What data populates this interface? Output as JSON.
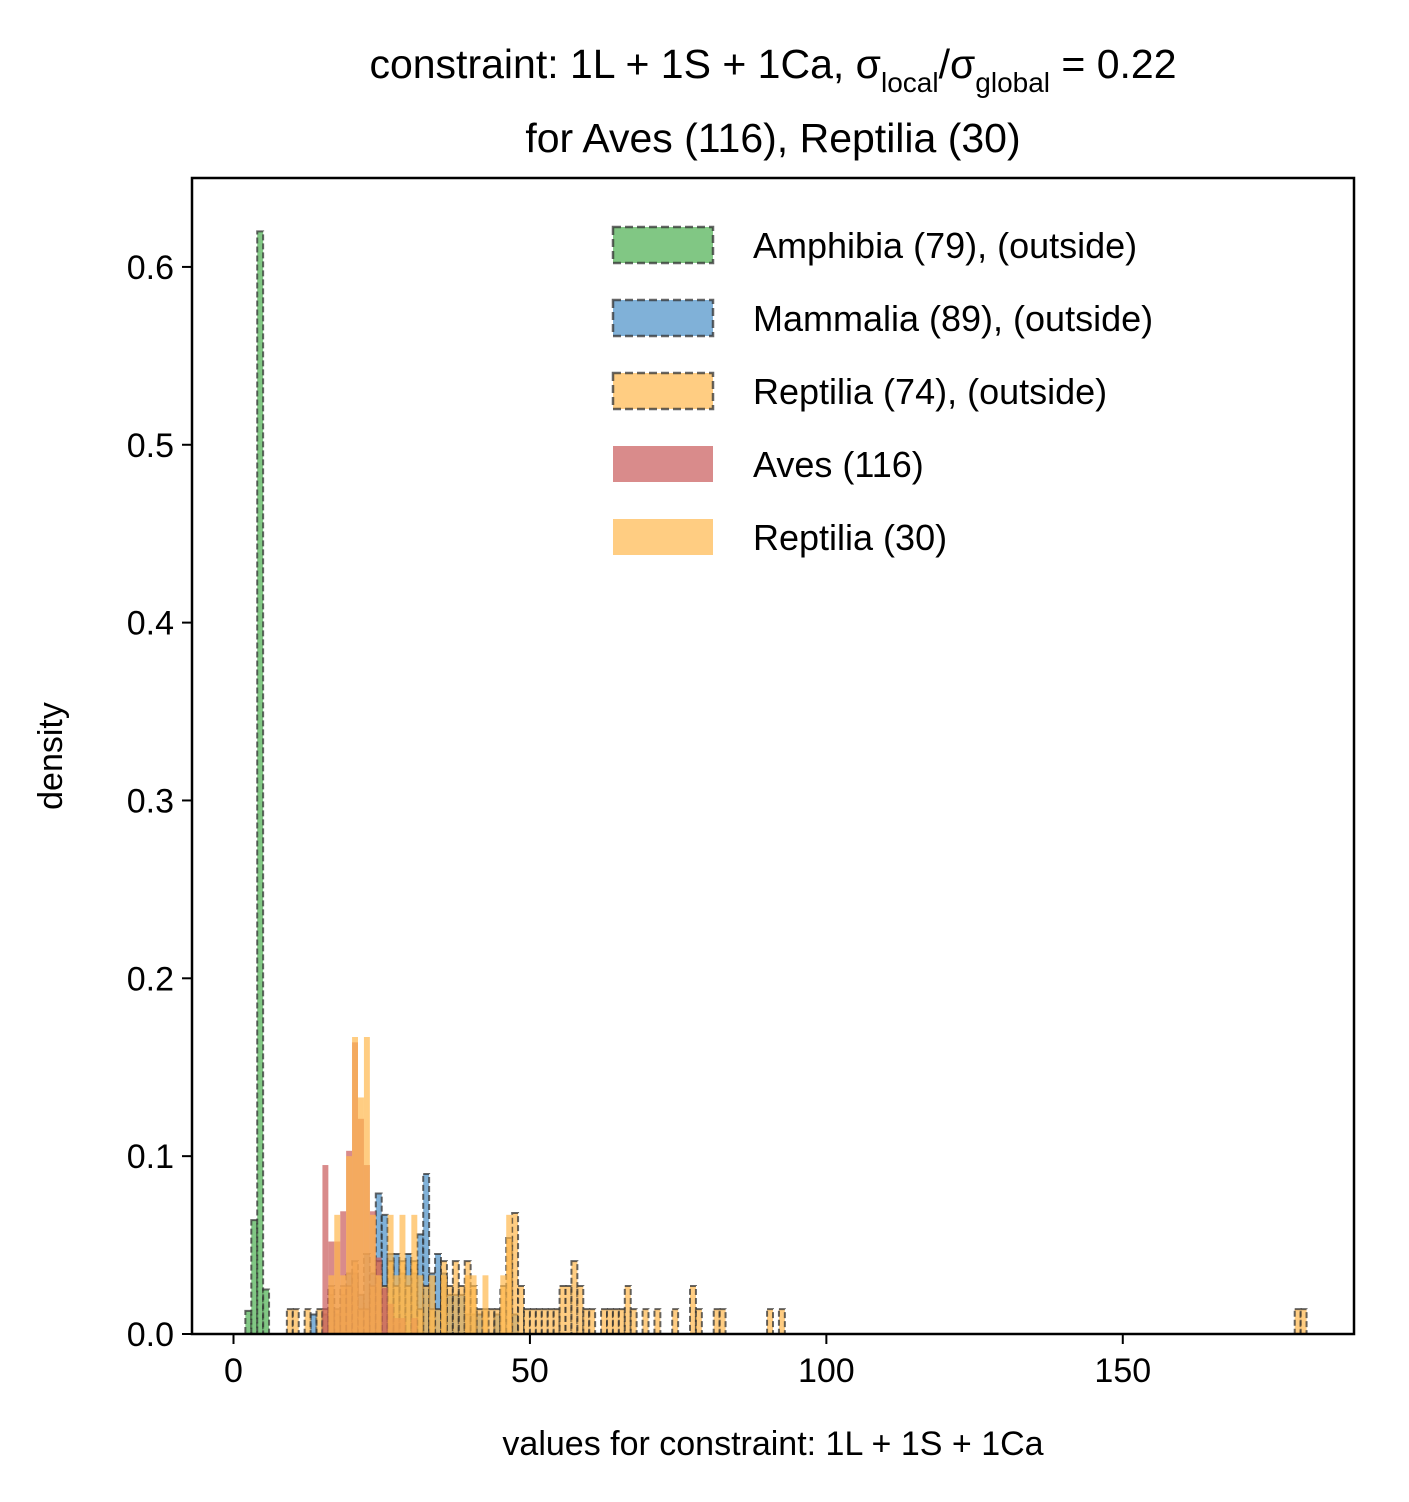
{
  "chart_data": {
    "type": "bar",
    "title": {
      "prefix": "constraint: 1L + 1S + 1Ca, σ",
      "sub1": "local",
      "mid": "/σ",
      "sub2": "global",
      "suffix": " =  0.22",
      "line2": "for Aves (116), Reptilia (30)"
    },
    "xlabel": "values for constraint: 1L + 1S + 1Ca",
    "ylabel": "density",
    "xlim": [
      -7,
      189
    ],
    "ylim": [
      0,
      0.65
    ],
    "xticks": [
      0,
      50,
      100,
      150
    ],
    "yticks": [
      "0.0",
      "0.1",
      "0.2",
      "0.3",
      "0.4",
      "0.5",
      "0.6"
    ],
    "legend_position": "top-right",
    "bin_width": 1,
    "series": [
      {
        "name": "Amphibia (79), (outside)",
        "color": "#4caf50",
        "style": "dashed",
        "bins": [
          [
            2,
            0.013
          ],
          [
            3,
            0.064
          ],
          [
            4,
            0.62
          ],
          [
            5,
            0.025
          ]
        ]
      },
      {
        "name": "Mammalia (89), (outside)",
        "color": "#4a90c8",
        "style": "dashed",
        "bins": [
          [
            13,
            0.011
          ],
          [
            15,
            0.011
          ],
          [
            16,
            0.022
          ],
          [
            17,
            0.011
          ],
          [
            18,
            0.022
          ],
          [
            19,
            0.034
          ],
          [
            20,
            0.034
          ],
          [
            21,
            0.022
          ],
          [
            22,
            0.045
          ],
          [
            23,
            0.034
          ],
          [
            24,
            0.079
          ],
          [
            25,
            0.067
          ],
          [
            26,
            0.045
          ],
          [
            27,
            0.045
          ],
          [
            28,
            0.034
          ],
          [
            29,
            0.045
          ],
          [
            30,
            0.034
          ],
          [
            31,
            0.056
          ],
          [
            32,
            0.09
          ],
          [
            33,
            0.034
          ],
          [
            34,
            0.045
          ],
          [
            35,
            0.034
          ],
          [
            36,
            0.022
          ],
          [
            37,
            0.022
          ],
          [
            38,
            0.022
          ],
          [
            39,
            0.011
          ],
          [
            40,
            0.011
          ],
          [
            41,
            0.011
          ],
          [
            44,
            0.011
          ],
          [
            47,
            0.011
          ]
        ]
      },
      {
        "name": "Reptilia (74), (outside)",
        "color": "#ffb84d",
        "style": "dashed",
        "bins": [
          [
            9,
            0.014
          ],
          [
            10,
            0.014
          ],
          [
            12,
            0.014
          ],
          [
            14,
            0.014
          ],
          [
            15,
            0.014
          ],
          [
            16,
            0.027
          ],
          [
            17,
            0.014
          ],
          [
            18,
            0.027
          ],
          [
            19,
            0.027
          ],
          [
            20,
            0.041
          ],
          [
            21,
            0.014
          ],
          [
            22,
            0.014
          ],
          [
            23,
            0.027
          ],
          [
            24,
            0.041
          ],
          [
            25,
            0.027
          ],
          [
            26,
            0.041
          ],
          [
            27,
            0.027
          ],
          [
            28,
            0.041
          ],
          [
            29,
            0.027
          ],
          [
            30,
            0.041
          ],
          [
            31,
            0.014
          ],
          [
            32,
            0.027
          ],
          [
            33,
            0.014
          ],
          [
            34,
            0.014
          ],
          [
            35,
            0.041
          ],
          [
            36,
            0.027
          ],
          [
            37,
            0.041
          ],
          [
            38,
            0.027
          ],
          [
            39,
            0.041
          ],
          [
            40,
            0.027
          ],
          [
            41,
            0.014
          ],
          [
            42,
            0.014
          ],
          [
            43,
            0.014
          ],
          [
            44,
            0.014
          ],
          [
            45,
            0.027
          ],
          [
            46,
            0.054
          ],
          [
            47,
            0.068
          ],
          [
            48,
            0.027
          ],
          [
            49,
            0.014
          ],
          [
            50,
            0.014
          ],
          [
            51,
            0.014
          ],
          [
            52,
            0.014
          ],
          [
            53,
            0.014
          ],
          [
            54,
            0.014
          ],
          [
            55,
            0.027
          ],
          [
            56,
            0.027
          ],
          [
            57,
            0.041
          ],
          [
            58,
            0.027
          ],
          [
            59,
            0.014
          ],
          [
            60,
            0.014
          ],
          [
            62,
            0.014
          ],
          [
            63,
            0.014
          ],
          [
            64,
            0.014
          ],
          [
            65,
            0.014
          ],
          [
            66,
            0.027
          ],
          [
            67,
            0.014
          ],
          [
            69,
            0.014
          ],
          [
            71,
            0.014
          ],
          [
            74,
            0.014
          ],
          [
            77,
            0.027
          ],
          [
            78,
            0.014
          ],
          [
            81,
            0.014
          ],
          [
            82,
            0.014
          ],
          [
            90,
            0.014
          ],
          [
            92,
            0.014
          ],
          [
            179,
            0.014
          ],
          [
            180,
            0.014
          ]
        ]
      },
      {
        "name": "Aves (116)",
        "color": "#c95a5a",
        "style": "solid",
        "bins": [
          [
            15,
            0.095
          ],
          [
            16,
            0.052
          ],
          [
            17,
            0.052
          ],
          [
            18,
            0.069
          ],
          [
            19,
            0.103
          ],
          [
            20,
            0.164
          ],
          [
            21,
            0.121
          ],
          [
            22,
            0.095
          ],
          [
            23,
            0.069
          ],
          [
            24,
            0.043
          ],
          [
            25,
            0.026
          ],
          [
            26,
            0.017
          ],
          [
            27,
            0.009
          ],
          [
            28,
            0.009
          ],
          [
            30,
            0.009
          ]
        ]
      },
      {
        "name": "Reptilia (30)",
        "color": "#ffb84d",
        "style": "solid",
        "bins": [
          [
            16,
            0.033
          ],
          [
            17,
            0.067
          ],
          [
            18,
            0.033
          ],
          [
            19,
            0.1
          ],
          [
            20,
            0.167
          ],
          [
            21,
            0.133
          ],
          [
            22,
            0.167
          ],
          [
            23,
            0.067
          ],
          [
            24,
            0.033
          ],
          [
            26,
            0.067
          ],
          [
            27,
            0.033
          ],
          [
            28,
            0.067
          ],
          [
            29,
            0.033
          ],
          [
            30,
            0.067
          ],
          [
            31,
            0.033
          ],
          [
            33,
            0.033
          ],
          [
            35,
            0.033
          ],
          [
            39,
            0.033
          ],
          [
            40,
            0.033
          ],
          [
            42,
            0.033
          ],
          [
            45,
            0.033
          ],
          [
            46,
            0.067
          ]
        ]
      }
    ]
  }
}
